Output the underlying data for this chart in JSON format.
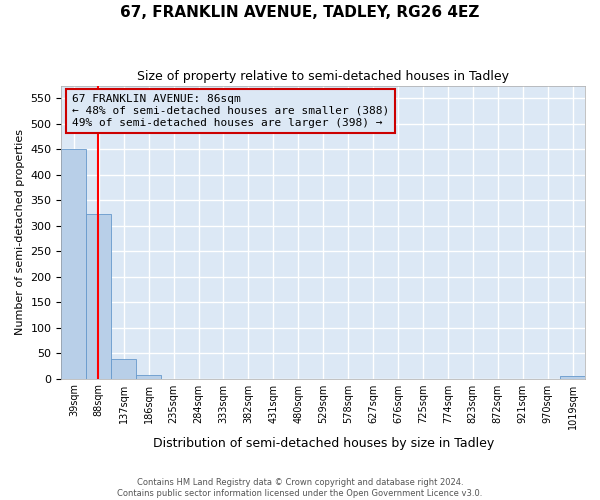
{
  "title": "67, FRANKLIN AVENUE, TADLEY, RG26 4EZ",
  "subtitle": "Size of property relative to semi-detached houses in Tadley",
  "xlabel": "Distribution of semi-detached houses by size in Tadley",
  "ylabel": "Number of semi-detached properties",
  "bar_values": [
    450,
    322,
    38,
    6,
    0,
    0,
    0,
    0,
    0,
    0,
    0,
    0,
    0,
    0,
    0,
    0,
    0,
    0,
    0,
    0,
    5
  ],
  "bin_labels": [
    "39sqm",
    "88sqm",
    "137sqm",
    "186sqm",
    "235sqm",
    "284sqm",
    "333sqm",
    "382sqm",
    "431sqm",
    "480sqm",
    "529sqm",
    "578sqm",
    "627sqm",
    "676sqm",
    "725sqm",
    "774sqm",
    "823sqm",
    "872sqm",
    "921sqm",
    "970sqm",
    "1019sqm"
  ],
  "bar_color": "#b8cfe8",
  "bar_edge_color": "#6699cc",
  "vline_x": 0.97,
  "annotation_text_line1": "67 FRANKLIN AVENUE: 86sqm",
  "annotation_text_line2": "← 48% of semi-detached houses are smaller (388)",
  "annotation_text_line3": "49% of semi-detached houses are larger (398) →",
  "annotation_box_color": "#cc0000",
  "ylim": [
    0,
    575
  ],
  "yticks": [
    0,
    50,
    100,
    150,
    200,
    250,
    300,
    350,
    400,
    450,
    500,
    550
  ],
  "footer_line1": "Contains HM Land Registry data © Crown copyright and database right 2024.",
  "footer_line2": "Contains public sector information licensed under the Open Government Licence v3.0.",
  "fig_bg_color": "#ffffff",
  "plot_bg_color": "#dce8f5",
  "grid_color": "#ffffff",
  "title_fontsize": 11,
  "subtitle_fontsize": 9,
  "ann_fontsize": 8
}
